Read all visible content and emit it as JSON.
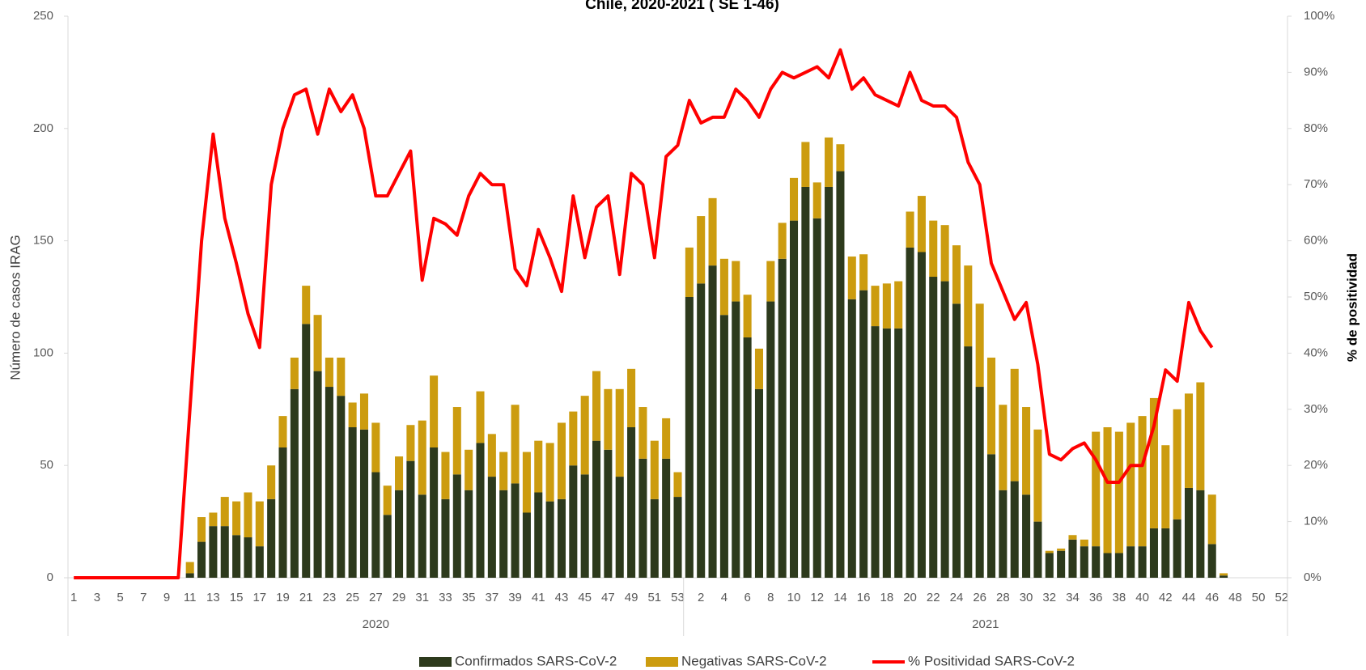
{
  "chart_data": {
    "type": "bar_line",
    "title": "Chile, 2020-2021 ( SE 1-46)",
    "y_label": "Número de casos IRAG",
    "y2_label": "% de positividad",
    "groups": [
      {
        "name": "2020",
        "categories": [
          "1",
          null,
          "3",
          null,
          "5",
          null,
          "7",
          null,
          "9",
          null,
          "11",
          null,
          "13",
          null,
          "15",
          null,
          "17",
          null,
          "19",
          null,
          "21",
          null,
          "23",
          null,
          "25",
          null,
          "27",
          null,
          "29",
          null,
          "31",
          null,
          "33",
          null,
          "35",
          null,
          "37",
          null,
          "39",
          null,
          "41",
          null,
          "43",
          null,
          "45",
          null,
          "47",
          null,
          "49",
          null,
          "51",
          null,
          "53"
        ]
      },
      {
        "name": "2021",
        "categories": [
          null,
          "2",
          null,
          "4",
          null,
          "6",
          null,
          "8",
          null,
          "10",
          null,
          "12",
          null,
          "14",
          null,
          "16",
          null,
          "18",
          null,
          "20",
          null,
          "22",
          null,
          "24",
          null,
          "26",
          null,
          "28",
          null,
          "30",
          null,
          "32",
          null,
          "34",
          null,
          "36",
          null,
          "38",
          null,
          "40",
          null,
          "42",
          null,
          "44",
          null,
          "46",
          null,
          "48",
          null,
          "50",
          null,
          "52"
        ]
      }
    ],
    "series": [
      {
        "name": "Confirmados SARS-CoV-2",
        "kind": "bar",
        "color": "#2d3a1c",
        "values": [
          0,
          0,
          0,
          0,
          0,
          0,
          0,
          0,
          0,
          0,
          2,
          16,
          23,
          23,
          19,
          18,
          14,
          35,
          58,
          84,
          113,
          92,
          85,
          81,
          67,
          66,
          47,
          28,
          39,
          52,
          37,
          58,
          35,
          46,
          39,
          60,
          45,
          39,
          42,
          29,
          38,
          34,
          35,
          50,
          46,
          61,
          57,
          45,
          67,
          53,
          35,
          53,
          36,
          125,
          131,
          139,
          117,
          123,
          107,
          84,
          123,
          142,
          159,
          174,
          160,
          174,
          181,
          124,
          128,
          112,
          111,
          111,
          147,
          145,
          134,
          132,
          122,
          103,
          85,
          55,
          39,
          43,
          37,
          25,
          11,
          12,
          17,
          14,
          14,
          11,
          11,
          14,
          14,
          22,
          22,
          26,
          40,
          39,
          15,
          1,
          0,
          0,
          0,
          0,
          0
        ]
      },
      {
        "name": "Negativas SARS-CoV-2",
        "kind": "bar",
        "color": "#cc9c0f",
        "values": [
          0,
          0,
          0,
          0,
          0,
          0,
          0,
          0,
          0,
          0,
          5,
          11,
          6,
          13,
          15,
          20,
          20,
          15,
          14,
          14,
          17,
          25,
          13,
          17,
          11,
          16,
          22,
          13,
          15,
          16,
          33,
          32,
          21,
          30,
          18,
          23,
          19,
          17,
          35,
          27,
          23,
          26,
          34,
          24,
          35,
          31,
          27,
          39,
          26,
          23,
          26,
          18,
          11,
          22,
          30,
          30,
          25,
          18,
          19,
          18,
          18,
          16,
          19,
          20,
          16,
          22,
          12,
          19,
          16,
          18,
          20,
          21,
          16,
          25,
          25,
          25,
          26,
          36,
          37,
          43,
          38,
          50,
          39,
          41,
          1,
          1,
          2,
          3,
          51,
          56,
          54,
          55,
          58,
          58,
          37,
          49,
          42,
          48,
          22,
          1,
          0,
          0,
          0,
          0,
          0
        ]
      },
      {
        "name": "% Positividad SARS-CoV-2",
        "kind": "line",
        "axis": "y2",
        "color": "#ff0000",
        "values": [
          0,
          0,
          0,
          0,
          0,
          0,
          0,
          0,
          0,
          0,
          30,
          60,
          79,
          64,
          56,
          47,
          41,
          70,
          80,
          86,
          87,
          79,
          87,
          83,
          86,
          80,
          68,
          68,
          72,
          76,
          53,
          64,
          63,
          61,
          68,
          72,
          70,
          70,
          55,
          52,
          62,
          57,
          51,
          68,
          57,
          66,
          68,
          54,
          72,
          70,
          57,
          75,
          77,
          85,
          81,
          82,
          82,
          87,
          85,
          82,
          87,
          90,
          89,
          90,
          91,
          89,
          94,
          87,
          89,
          86,
          85,
          84,
          90,
          85,
          84,
          84,
          82,
          74,
          70,
          56,
          51,
          46,
          49,
          38,
          22,
          21,
          23,
          24,
          21,
          17,
          17,
          20,
          20,
          27,
          37,
          35,
          49,
          44,
          41,
          null,
          null,
          null,
          null,
          null,
          null
        ]
      }
    ],
    "ylim": [
      0,
      250
    ],
    "yticks": [
      0,
      50,
      100,
      150,
      200,
      250
    ],
    "y2lim": [
      0,
      100
    ],
    "y2ticks": [
      {
        "value": 0,
        "label": "0%"
      },
      {
        "value": 10,
        "label": "10%"
      },
      {
        "value": 20,
        "label": "20%"
      },
      {
        "value": 30,
        "label": "30%"
      },
      {
        "value": 40,
        "label": "40%"
      },
      {
        "value": 50,
        "label": "50%"
      },
      {
        "value": 60,
        "label": "60%"
      },
      {
        "value": 70,
        "label": "70%"
      },
      {
        "value": 80,
        "label": "80%"
      },
      {
        "value": 90,
        "label": "90%"
      },
      {
        "value": 100,
        "label": "100%"
      }
    ],
    "legend": "bottom"
  }
}
